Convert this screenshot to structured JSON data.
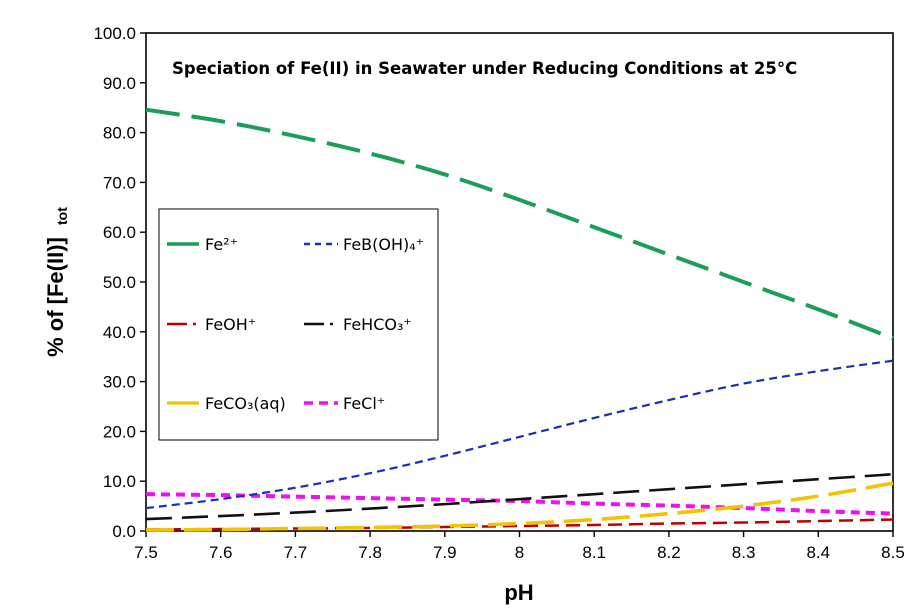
{
  "chart_data": {
    "type": "line",
    "title": "Speciation of Fe(II)  in Seawater under Reducing Conditions at 25°C",
    "xlabel": "pH",
    "ylabel": "% of [Fe(II)]",
    "ylabel_sub": "tot",
    "xlim": [
      7.5,
      8.5
    ],
    "ylim": [
      0,
      100
    ],
    "x_ticks": [
      "7.5",
      "7.6",
      "7.7",
      "7.8",
      "7.9",
      "8",
      "8.1",
      "8.2",
      "8.3",
      "8.4",
      "8.5"
    ],
    "y_ticks": [
      "0.0",
      "10.0",
      "20.0",
      "30.0",
      "40.0",
      "50.0",
      "60.0",
      "70.0",
      "80.0",
      "90.0",
      "100.0"
    ],
    "x": [
      7.5,
      7.6,
      7.7,
      7.8,
      7.9,
      8.0,
      8.1,
      8.2,
      8.3,
      8.4,
      8.5
    ],
    "legend_position": "left",
    "series": [
      {
        "name": "Fe²⁺",
        "color": "#1a9e58",
        "values": [
          84.6,
          82.3,
          79.3,
          75.8,
          71.6,
          66.5,
          61.0,
          55.5,
          50.0,
          44.5,
          38.7
        ]
      },
      {
        "name": "FeB(OH)₄⁺",
        "color": "#1c2fb3",
        "values": [
          4.6,
          6.4,
          8.7,
          11.6,
          15.1,
          18.9,
          22.7,
          26.3,
          29.6,
          32.1,
          34.2
        ]
      },
      {
        "name": "FeOH⁺",
        "color": "#c00000",
        "values": [
          0.3,
          0.4,
          0.5,
          0.6,
          0.8,
          1.0,
          1.2,
          1.5,
          1.7,
          2.0,
          2.3
        ]
      },
      {
        "name": "FeHCO₃⁺",
        "color": "#111111",
        "values": [
          2.4,
          3.0,
          3.7,
          4.5,
          5.4,
          6.4,
          7.4,
          8.4,
          9.4,
          10.4,
          11.4
        ]
      },
      {
        "name": "FeCO₃(aq)",
        "color": "#f5c200",
        "values": [
          0.2,
          0.3,
          0.5,
          0.7,
          1.0,
          1.5,
          2.3,
          3.5,
          5.0,
          7.0,
          9.6
        ]
      },
      {
        "name": "FeCl⁺",
        "color": "#ee10ee",
        "values": [
          7.4,
          7.2,
          6.9,
          6.6,
          6.3,
          6.0,
          5.5,
          5.1,
          4.6,
          4.0,
          3.5
        ]
      }
    ]
  }
}
